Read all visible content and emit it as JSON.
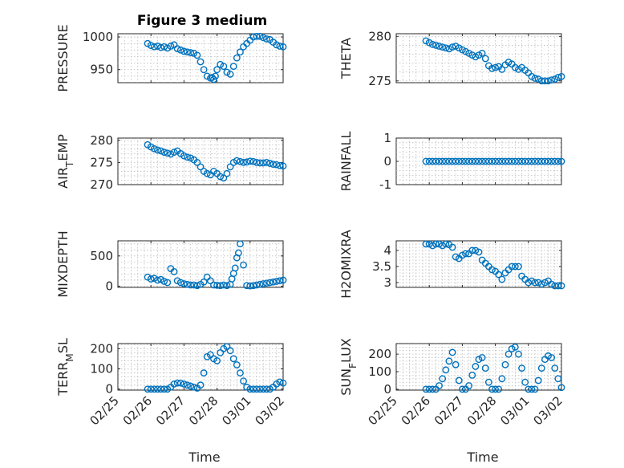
{
  "figure": {
    "title": "Figure 3 medium",
    "marker_color": "#0072BD",
    "x_tick_labels": [
      "02/25",
      "02/26",
      "02/27",
      "02/28",
      "03/01",
      "03/02"
    ]
  },
  "chart_data": [
    {
      "type": "scatter",
      "ylabel": "PRESSURE",
      "xlabel": "",
      "title": "Figure 3 medium",
      "xlim": [
        0,
        5
      ],
      "ylim": [
        930,
        1005
      ],
      "yticks": [
        950,
        1000
      ],
      "grid": true,
      "x": [
        0.9,
        1.0,
        1.1,
        1.2,
        1.3,
        1.4,
        1.5,
        1.6,
        1.7,
        1.8,
        1.9,
        2.0,
        2.1,
        2.2,
        2.3,
        2.4,
        2.5,
        2.6,
        2.7,
        2.8,
        2.85,
        2.9,
        2.95,
        3.0,
        3.1,
        3.2,
        3.3,
        3.4,
        3.5,
        3.6,
        3.7,
        3.8,
        3.9,
        4.0,
        4.1,
        4.2,
        4.3,
        4.4,
        4.5,
        4.6,
        4.7,
        4.8,
        4.9,
        5.0
      ],
      "y": [
        990,
        987,
        985,
        986,
        984,
        985,
        983,
        986,
        988,
        982,
        980,
        978,
        977,
        976,
        975,
        972,
        962,
        950,
        940,
        937,
        938,
        935,
        940,
        950,
        958,
        955,
        946,
        943,
        955,
        968,
        977,
        985,
        990,
        995,
        1000,
        1001,
        1001,
        999,
        997,
        996,
        992,
        988,
        986,
        985
      ]
    },
    {
      "type": "scatter",
      "ylabel": "THETA",
      "xlabel": "",
      "xlim": [
        0,
        5
      ],
      "ylim": [
        274.8,
        280.3
      ],
      "yticks": [
        275,
        280
      ],
      "grid": true,
      "x": [
        0.9,
        1.0,
        1.1,
        1.2,
        1.3,
        1.4,
        1.5,
        1.6,
        1.7,
        1.8,
        1.9,
        2.0,
        2.1,
        2.2,
        2.3,
        2.4,
        2.5,
        2.6,
        2.7,
        2.8,
        2.9,
        3.0,
        3.1,
        3.2,
        3.3,
        3.4,
        3.5,
        3.6,
        3.7,
        3.8,
        3.9,
        4.0,
        4.1,
        4.2,
        4.3,
        4.4,
        4.5,
        4.6,
        4.7,
        4.8,
        4.9,
        5.0
      ],
      "y": [
        279.5,
        279.3,
        279.1,
        279.0,
        278.9,
        278.8,
        278.7,
        278.6,
        278.8,
        278.9,
        278.7,
        278.5,
        278.3,
        278.1,
        277.9,
        277.7,
        277.9,
        278.1,
        277.5,
        276.7,
        276.4,
        276.5,
        276.6,
        276.3,
        276.8,
        277.1,
        276.9,
        276.5,
        276.3,
        276.5,
        276.2,
        275.9,
        275.5,
        275.3,
        275.2,
        275.0,
        275.0,
        275.0,
        275.1,
        275.2,
        275.4,
        275.5
      ]
    },
    {
      "type": "scatter",
      "ylabel": "AIR_TEMP",
      "xlabel": "",
      "xlim": [
        0,
        5
      ],
      "ylim": [
        270,
        280.5
      ],
      "yticks": [
        270,
        275,
        280
      ],
      "grid": true,
      "x": [
        0.9,
        1.0,
        1.1,
        1.2,
        1.3,
        1.4,
        1.5,
        1.6,
        1.7,
        1.8,
        1.9,
        2.0,
        2.1,
        2.2,
        2.3,
        2.4,
        2.5,
        2.6,
        2.7,
        2.8,
        2.9,
        3.0,
        3.1,
        3.2,
        3.3,
        3.4,
        3.5,
        3.6,
        3.7,
        3.8,
        3.9,
        4.0,
        4.1,
        4.2,
        4.3,
        4.4,
        4.5,
        4.6,
        4.7,
        4.8,
        4.9,
        5.0
      ],
      "y": [
        279.0,
        278.5,
        278.1,
        277.8,
        277.6,
        277.3,
        277.1,
        276.9,
        277.3,
        277.6,
        277.0,
        276.5,
        276.2,
        276.0,
        275.6,
        275.0,
        274.0,
        273.0,
        272.5,
        272.2,
        273.0,
        272.5,
        271.8,
        271.5,
        272.5,
        274.0,
        275.0,
        275.4,
        275.2,
        275.0,
        275.1,
        275.3,
        275.2,
        275.0,
        274.9,
        274.9,
        275.0,
        274.8,
        274.6,
        274.5,
        274.3,
        274.2
      ]
    },
    {
      "type": "scatter",
      "ylabel": "RAINFALL",
      "xlabel": "",
      "xlim": [
        0,
        5
      ],
      "ylim": [
        -1,
        1
      ],
      "yticks": [
        -1,
        0,
        1
      ],
      "grid": true,
      "x": [
        0.9,
        1.0,
        1.1,
        1.2,
        1.3,
        1.4,
        1.5,
        1.6,
        1.7,
        1.8,
        1.9,
        2.0,
        2.1,
        2.2,
        2.3,
        2.4,
        2.5,
        2.6,
        2.7,
        2.8,
        2.9,
        3.0,
        3.1,
        3.2,
        3.3,
        3.4,
        3.5,
        3.6,
        3.7,
        3.8,
        3.9,
        4.0,
        4.1,
        4.2,
        4.3,
        4.4,
        4.5,
        4.6,
        4.7,
        4.8,
        4.9,
        5.0
      ],
      "y": [
        0,
        0,
        0,
        0,
        0,
        0,
        0,
        0,
        0,
        0,
        0,
        0,
        0,
        0,
        0,
        0,
        0,
        0,
        0,
        0,
        0,
        0,
        0,
        0,
        0,
        0,
        0,
        0,
        0,
        0,
        0,
        0,
        0,
        0,
        0,
        0,
        0,
        0,
        0,
        0,
        0,
        0
      ]
    },
    {
      "type": "scatter",
      "ylabel": "MIXDEPTH",
      "xlabel": "",
      "xlim": [
        0,
        5
      ],
      "ylim": [
        -20,
        750
      ],
      "yticks": [
        0,
        500
      ],
      "grid": true,
      "x": [
        0.9,
        1.0,
        1.1,
        1.2,
        1.3,
        1.4,
        1.5,
        1.6,
        1.7,
        1.8,
        1.9,
        2.0,
        2.1,
        2.2,
        2.3,
        2.4,
        2.5,
        2.6,
        2.7,
        2.8,
        2.9,
        3.0,
        3.1,
        3.2,
        3.3,
        3.4,
        3.45,
        3.5,
        3.55,
        3.6,
        3.65,
        3.7,
        3.8,
        3.9,
        4.0,
        4.1,
        4.2,
        4.3,
        4.4,
        4.5,
        4.6,
        4.7,
        4.8,
        4.9,
        5.0
      ],
      "y": [
        150,
        120,
        130,
        100,
        110,
        80,
        60,
        290,
        240,
        90,
        60,
        40,
        30,
        20,
        20,
        10,
        30,
        70,
        150,
        90,
        20,
        15,
        10,
        20,
        10,
        30,
        120,
        210,
        300,
        470,
        550,
        700,
        350,
        10,
        5,
        10,
        20,
        30,
        40,
        50,
        60,
        70,
        80,
        90,
        100
      ]
    },
    {
      "type": "scatter",
      "ylabel": "H2OMIXRA",
      "xlabel": "",
      "xlim": [
        0,
        5
      ],
      "ylim": [
        2.85,
        4.3
      ],
      "yticks": [
        3,
        3.5,
        4
      ],
      "grid": true,
      "x": [
        0.9,
        1.0,
        1.1,
        1.2,
        1.3,
        1.4,
        1.5,
        1.6,
        1.7,
        1.8,
        1.9,
        2.0,
        2.1,
        2.2,
        2.3,
        2.4,
        2.5,
        2.6,
        2.7,
        2.8,
        2.9,
        3.0,
        3.1,
        3.2,
        3.3,
        3.4,
        3.5,
        3.6,
        3.7,
        3.8,
        3.9,
        4.0,
        4.1,
        4.2,
        4.3,
        4.4,
        4.5,
        4.6,
        4.7,
        4.8,
        4.9,
        5.0
      ],
      "y": [
        4.2,
        4.2,
        4.15,
        4.2,
        4.2,
        4.15,
        4.2,
        4.18,
        4.1,
        3.8,
        3.75,
        3.85,
        3.9,
        3.9,
        4.0,
        4.0,
        3.95,
        3.7,
        3.6,
        3.5,
        3.4,
        3.35,
        3.25,
        3.1,
        3.3,
        3.4,
        3.5,
        3.5,
        3.5,
        3.2,
        3.1,
        3.0,
        3.05,
        3.0,
        3.0,
        2.95,
        3.0,
        3.05,
        2.95,
        2.9,
        2.9,
        2.9
      ]
    },
    {
      "type": "scatter",
      "ylabel": "TERR_MSL",
      "xlabel": "Time",
      "xlim": [
        0,
        5
      ],
      "ylim": [
        -5,
        225
      ],
      "yticks": [
        0,
        100,
        200
      ],
      "grid": true,
      "x": [
        0.9,
        1.0,
        1.1,
        1.2,
        1.3,
        1.4,
        1.5,
        1.6,
        1.7,
        1.8,
        1.9,
        2.0,
        2.1,
        2.2,
        2.3,
        2.4,
        2.5,
        2.6,
        2.7,
        2.8,
        2.9,
        3.0,
        3.1,
        3.2,
        3.3,
        3.4,
        3.5,
        3.6,
        3.7,
        3.8,
        3.9,
        4.0,
        4.1,
        4.2,
        4.3,
        4.4,
        4.5,
        4.6,
        4.7,
        4.8,
        4.9,
        5.0
      ],
      "y": [
        0,
        0,
        0,
        0,
        0,
        0,
        0,
        10,
        25,
        30,
        30,
        25,
        20,
        15,
        10,
        5,
        20,
        80,
        160,
        170,
        150,
        140,
        180,
        200,
        210,
        190,
        150,
        120,
        80,
        40,
        10,
        0,
        0,
        0,
        0,
        0,
        0,
        0,
        10,
        25,
        35,
        30
      ]
    },
    {
      "type": "scatter",
      "ylabel": "SUN_FLUX",
      "xlabel": "Time",
      "xlim": [
        0,
        5
      ],
      "ylim": [
        -5,
        260
      ],
      "yticks": [
        0,
        100,
        200
      ],
      "grid": true,
      "x": [
        0.9,
        1.0,
        1.1,
        1.2,
        1.3,
        1.4,
        1.5,
        1.6,
        1.7,
        1.8,
        1.9,
        2.0,
        2.1,
        2.2,
        2.3,
        2.4,
        2.5,
        2.6,
        2.7,
        2.8,
        2.9,
        3.0,
        3.1,
        3.2,
        3.3,
        3.4,
        3.5,
        3.6,
        3.7,
        3.8,
        3.9,
        4.0,
        4.1,
        4.2,
        4.3,
        4.4,
        4.5,
        4.6,
        4.7,
        4.8,
        4.9,
        5.0
      ],
      "y": [
        0,
        0,
        0,
        0,
        20,
        60,
        110,
        160,
        210,
        140,
        50,
        0,
        0,
        20,
        80,
        130,
        170,
        180,
        120,
        40,
        0,
        0,
        0,
        60,
        140,
        200,
        230,
        240,
        200,
        120,
        40,
        0,
        0,
        0,
        50,
        120,
        170,
        190,
        180,
        120,
        60,
        10
      ]
    }
  ]
}
